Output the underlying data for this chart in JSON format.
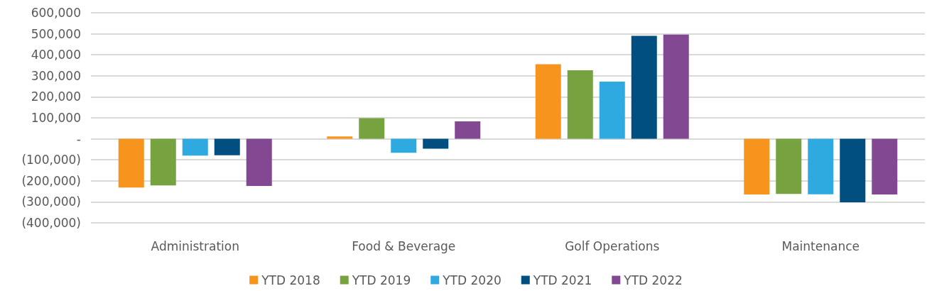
{
  "chart_data": {
    "type": "bar",
    "categories": [
      "Administration",
      "Food & Beverage",
      "Golf Operations",
      "Maintenance"
    ],
    "series": [
      {
        "name": "YTD 2018",
        "color": "#f7941d",
        "values": [
          -232000,
          11000,
          355000,
          -265000
        ]
      },
      {
        "name": "YTD 2019",
        "color": "#76a340",
        "values": [
          -222000,
          98000,
          326000,
          -262000
        ]
      },
      {
        "name": "YTD 2020",
        "color": "#2eaae1",
        "values": [
          -80000,
          -66000,
          272000,
          -264000
        ]
      },
      {
        "name": "YTD 2021",
        "color": "#004f80",
        "values": [
          -78000,
          -47000,
          490000,
          -302000
        ]
      },
      {
        "name": "YTD 2022",
        "color": "#824892",
        "values": [
          -224000,
          83000,
          496000,
          -265000
        ]
      }
    ],
    "ylim": [
      -400000,
      600000
    ],
    "yticks": [
      {
        "value": -400000,
        "label": "(400,000)"
      },
      {
        "value": -300000,
        "label": "(300,000)"
      },
      {
        "value": -200000,
        "label": "(200,000)"
      },
      {
        "value": -100000,
        "label": "(100,000)"
      },
      {
        "value": 0,
        "label": "-"
      },
      {
        "value": 100000,
        "label": "100,000"
      },
      {
        "value": 200000,
        "label": "200,000"
      },
      {
        "value": 300000,
        "label": "300,000"
      },
      {
        "value": 400000,
        "label": "400,000"
      },
      {
        "value": 500000,
        "label": "500,000"
      },
      {
        "value": 600000,
        "label": "600,000"
      }
    ],
    "grid": "y",
    "legend": "bottom"
  }
}
